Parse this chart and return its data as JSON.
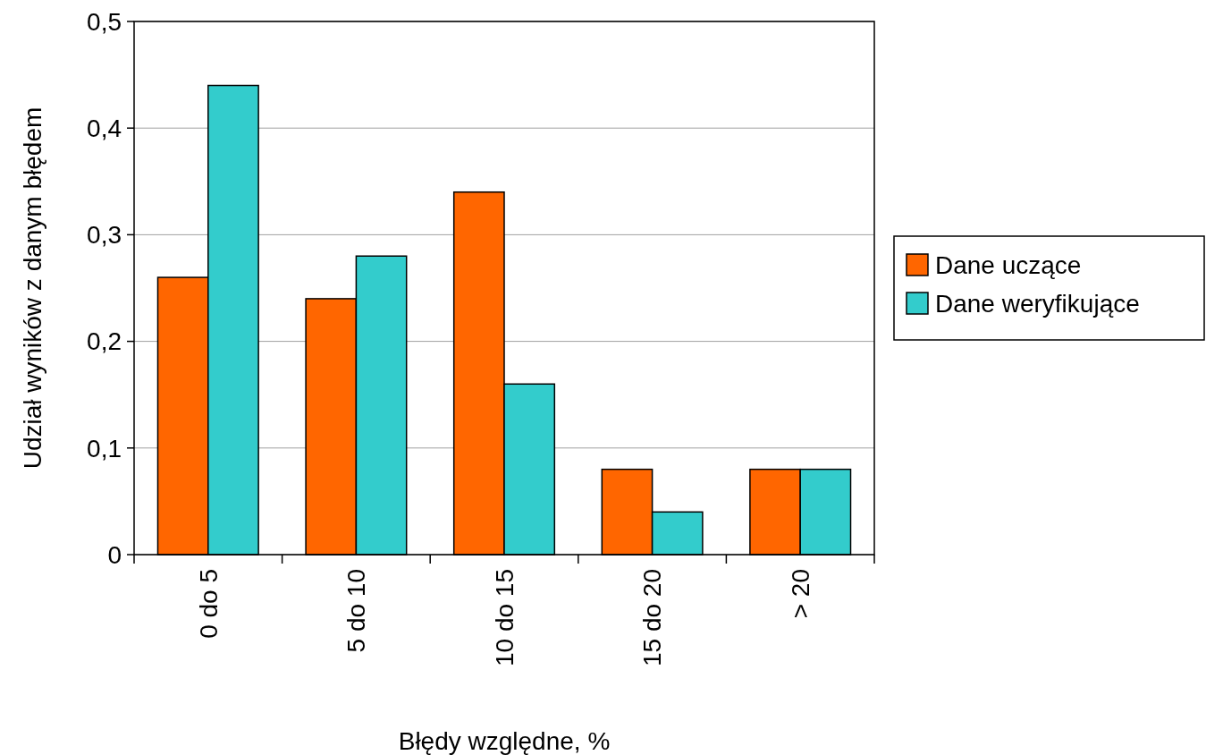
{
  "chart_data": {
    "type": "bar",
    "xlabel": "Błędy względne, %",
    "ylabel": "Udział wyników z danym błędem",
    "categories": [
      "0 do 5",
      "5 do 10",
      "10 do 15",
      "15 do 20",
      "> 20"
    ],
    "series": [
      {
        "name": "Dane uczące",
        "color": "#ff6600",
        "values": [
          0.26,
          0.24,
          0.34,
          0.08,
          0.08
        ]
      },
      {
        "name": "Dane weryfikujące",
        "color": "#33cccc",
        "values": [
          0.44,
          0.28,
          0.16,
          0.04,
          0.08
        ]
      }
    ],
    "ylim": [
      0,
      0.5
    ],
    "yticks": [
      {
        "value": 0,
        "label": "0"
      },
      {
        "value": 0.1,
        "label": "0,1"
      },
      {
        "value": 0.2,
        "label": "0,2"
      },
      {
        "value": 0.3,
        "label": "0,3"
      },
      {
        "value": 0.4,
        "label": "0,4"
      },
      {
        "value": 0.5,
        "label": "0,5"
      }
    ],
    "grid": "y",
    "legend": "right"
  }
}
